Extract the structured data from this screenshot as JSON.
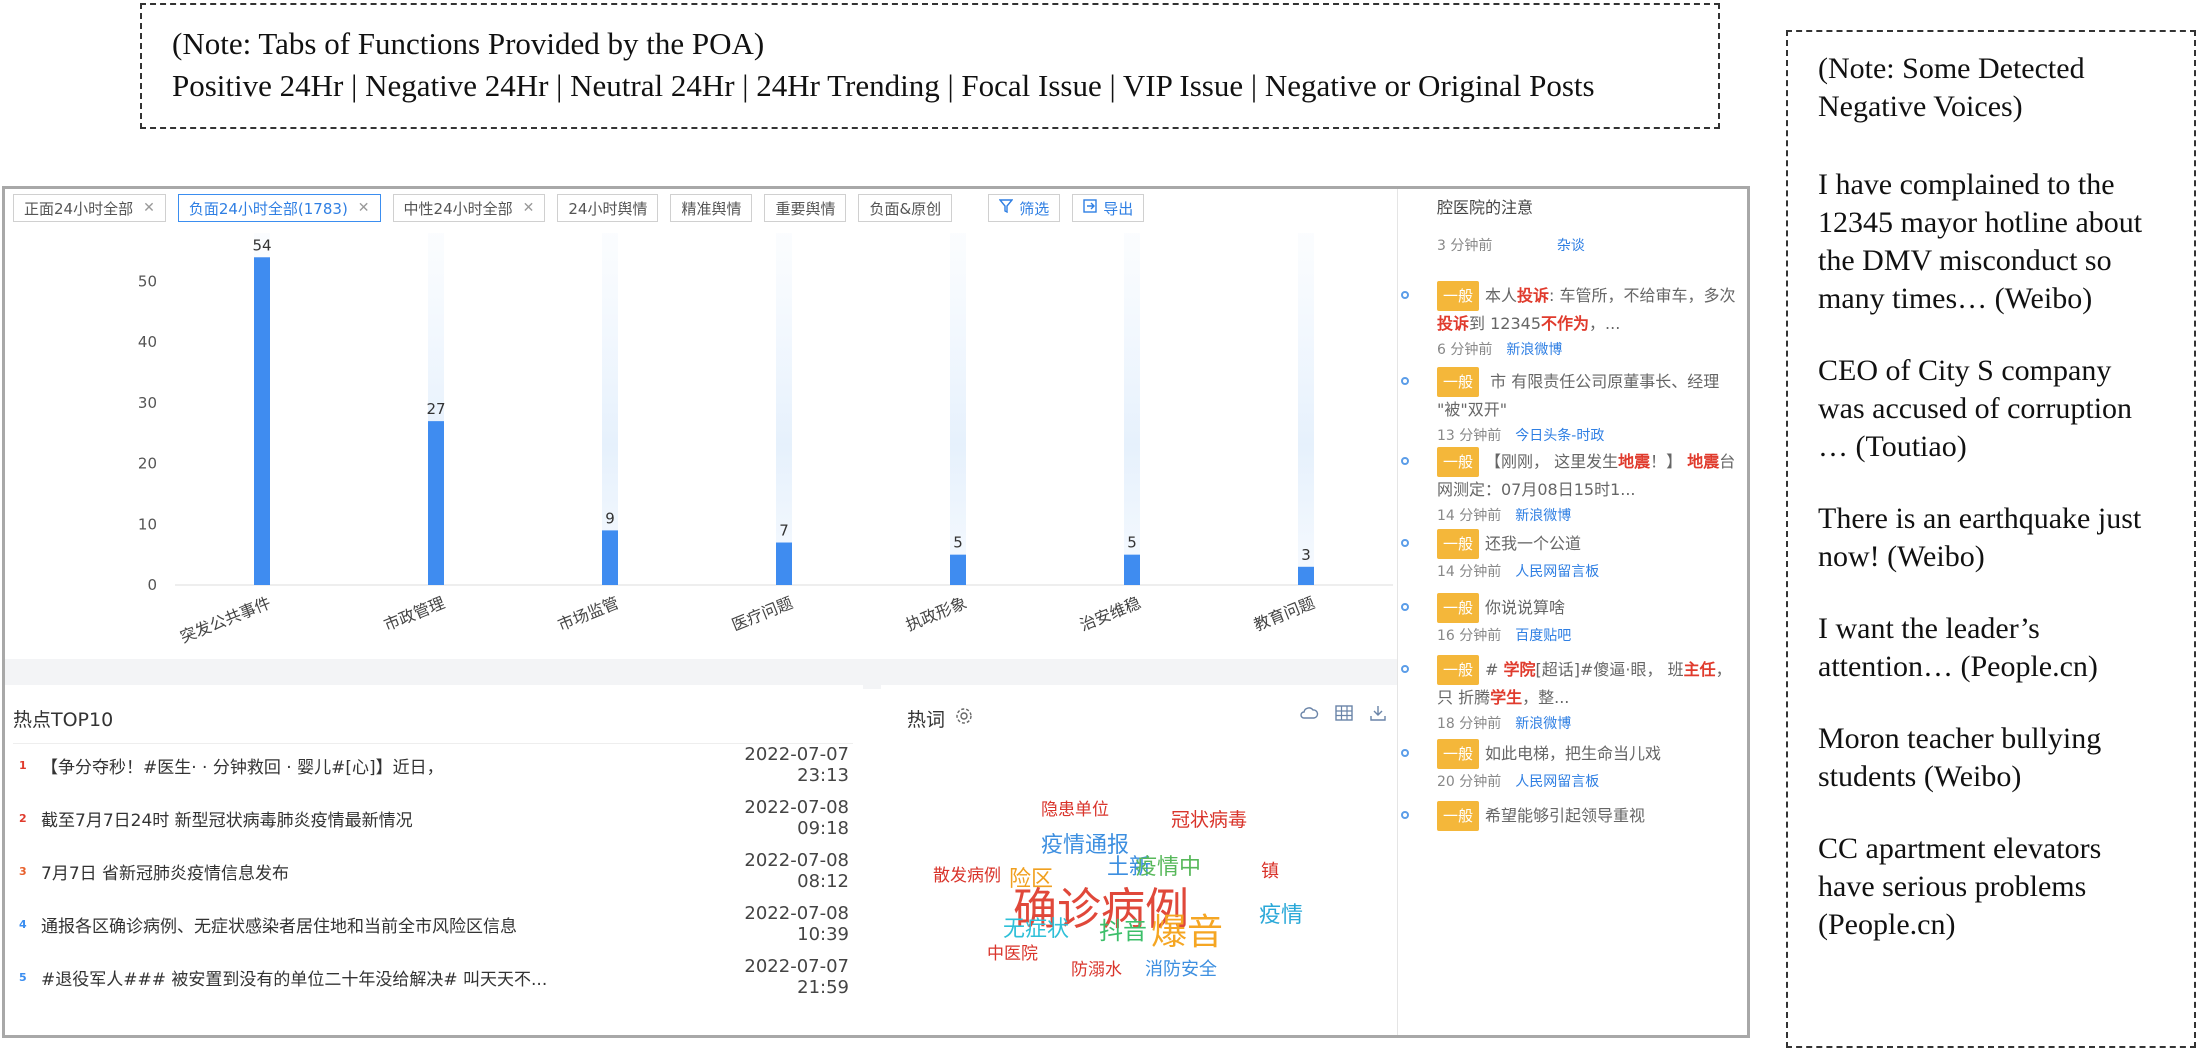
{
  "note_top": {
    "line1": "(Note: Tabs of Functions Provided by the POA)",
    "line2": "Positive 24Hr | Negative 24Hr | Neutral 24Hr | 24Hr Trending | Focal Issue | VIP Issue | Negative or Original Posts"
  },
  "note_right": {
    "heading": "(Note: Some Detected Negative Voices)",
    "items": [
      "I have complained to the 12345 mayor hotline about the DMV misconduct so many times… (Weibo)",
      "CEO of City S company was accused of corruption … (Toutiao)",
      "There is an earthquake just now! (Weibo)",
      "I want the leader’s attention… (People.cn)",
      "Moron teacher bullying students (Weibo)",
      "CC apartment elevators have serious problems (People.cn)"
    ]
  },
  "tabs": [
    {
      "label": "正面24小时全部",
      "closable": true,
      "active": false
    },
    {
      "label": "负面24小时全部(1783)",
      "closable": true,
      "active": true
    },
    {
      "label": "中性24小时全部",
      "closable": true,
      "active": false
    },
    {
      "label": "24小时舆情",
      "closable": false,
      "active": false
    },
    {
      "label": "精准舆情",
      "closable": false,
      "active": false
    },
    {
      "label": "重要舆情",
      "closable": false,
      "active": false
    },
    {
      "label": "负面&原创",
      "closable": false,
      "active": false
    }
  ],
  "actions": {
    "filter": "筛选",
    "export": "导出"
  },
  "chart_data": {
    "type": "bar",
    "categories": [
      "突发公共事件",
      "市政管理",
      "市场监管",
      "医疗问题",
      "执政形象",
      "治安维稳",
      "教育问题"
    ],
    "values": [
      54,
      27,
      9,
      7,
      5,
      5,
      3
    ],
    "yticks": [
      0,
      10,
      20,
      30,
      40,
      50
    ],
    "ylim": [
      0,
      58
    ],
    "grid": false,
    "bar_color": "#3f8cf0"
  },
  "top10": {
    "title": "热点TOP10",
    "rows": [
      {
        "rank": "1",
        "rank_color": "#e03b2d",
        "title": "【争分夺秒！#医生·  ·  分钟救回  ·  婴儿#[心]】近日，",
        "time": "2022-07-07 23:13"
      },
      {
        "rank": "2",
        "rank_color": "#e03b2d",
        "title": "截至7月7日24时    新型冠状病毒肺炎疫情最新情况",
        "time": "2022-07-08 09:18"
      },
      {
        "rank": "3",
        "rank_color": "#e8602c",
        "title": "7月7日    省新冠肺炎疫情信息发布",
        "time": "2022-07-08 08:12"
      },
      {
        "rank": "4",
        "rank_color": "#3b8ef0",
        "title": "    通报各区确诊病例、无症状感染者居住地和当前全市风险区信息",
        "time": "2022-07-08 10:39"
      },
      {
        "rank": "5",
        "rank_color": "#3b8ef0",
        "title": "#退役军人###              被安置到没有的单位二十年没给解决# 叫天天不...",
        "time": "2022-07-07 21:59"
      }
    ]
  },
  "hotwords": {
    "title": "热词",
    "words": [
      {
        "text": "隐患单位",
        "color": "#d9342b",
        "size": 17
      },
      {
        "text": "冠状病毒",
        "color": "#d9342b",
        "size": 19
      },
      {
        "text": "疫情通报",
        "color": "#3d8fe0",
        "size": 22
      },
      {
        "text": "土新",
        "color": "#3d8fe0",
        "size": 22
      },
      {
        "text": "疫情中",
        "color": "#57b85a",
        "size": 22
      },
      {
        "text": "镇",
        "color": "#d9342b",
        "size": 18
      },
      {
        "text": "散发病例",
        "color": "#d9342b",
        "size": 17
      },
      {
        "text": "险区",
        "color": "#f0a020",
        "size": 22
      },
      {
        "text": "确诊病例",
        "color": "#e0483a",
        "size": 44
      },
      {
        "text": "疫情",
        "color": "#2aa8d8",
        "size": 22
      },
      {
        "text": "无症状",
        "color": "#2ec0d8",
        "size": 22
      },
      {
        "text": "抖音",
        "color": "#3dbf6a",
        "size": 24
      },
      {
        "text": "爆音",
        "color": "#f5a623",
        "size": 36
      },
      {
        "text": "中医院",
        "color": "#d9342b",
        "size": 17
      },
      {
        "text": "防溺水",
        "color": "#d9342b",
        "size": 17
      },
      {
        "text": "消防安全",
        "color": "#3d8fe0",
        "size": 18
      }
    ]
  },
  "feed": {
    "top_title": "腔医院的注意",
    "top_meta_time": "3 分钟前",
    "top_meta_src": "杂谈",
    "badge": "一般",
    "items": [
      {
        "text_parts": [
          [
            "本人",
            false
          ],
          [
            "投诉",
            true
          ],
          [
            ":    车管所，不给审车，多次",
            false
          ],
          [
            "投诉",
            true
          ],
          [
            "到    12345",
            false
          ],
          [
            "不作为",
            true
          ],
          [
            "，...",
            false
          ]
        ],
        "time": "6 分钟前",
        "src": "新浪微博"
      },
      {
        "text_parts": [
          [
            "     市              有限责任公司原董事长、经理       \"被\"双开\"",
            false
          ]
        ],
        "time": "13 分钟前",
        "src": "今日头条-时政"
      },
      {
        "text_parts": [
          [
            "【刚刚，      这里发生",
            false
          ],
          [
            "地震",
            true
          ],
          [
            "！】    ",
            false
          ],
          [
            "地震",
            true
          ],
          [
            "台网测定：07月08日15时1...",
            false
          ]
        ],
        "time": "14 分钟前",
        "src": "新浪微博"
      },
      {
        "text_parts": [
          [
            "还我一个公道",
            false
          ]
        ],
        "time": "14 分钟前",
        "src": "人民网留言板"
      },
      {
        "text_parts": [
          [
            "你说说算啥",
            false
          ]
        ],
        "time": "16 分钟前",
        "src": "百度贴吧"
      },
      {
        "text_parts": [
          [
            "#            ",
            false
          ],
          [
            "学院",
            true
          ],
          [
            "[超话]#傻逼·眼，    班",
            false
          ],
          [
            "主任",
            true
          ],
          [
            "，只  折腾",
            false
          ],
          [
            "学生",
            true
          ],
          [
            "，整...",
            false
          ]
        ],
        "time": "18 分钟前",
        "src": "新浪微博"
      },
      {
        "text_parts": [
          [
            "如此电梯，把生命当儿戏",
            false
          ]
        ],
        "time": "20 分钟前",
        "src": "人民网留言板"
      },
      {
        "text_parts": [
          [
            "希望能够引起领导重视",
            false
          ]
        ],
        "time": "",
        "src": ""
      }
    ]
  }
}
